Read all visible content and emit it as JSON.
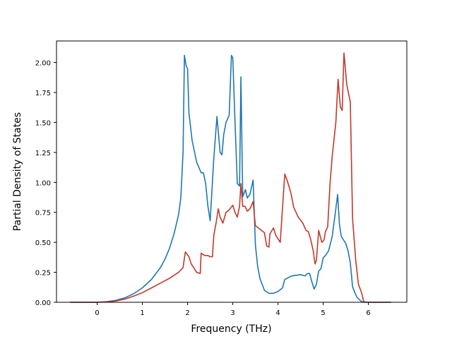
{
  "chart_data": {
    "type": "line",
    "title": "",
    "xlabel": "Frequency (THz)",
    "ylabel": "Partial Density of States",
    "xlim": [
      -0.9,
      6.85
    ],
    "ylim": [
      0,
      2.18
    ],
    "xticks": [
      0,
      1,
      2,
      3,
      4,
      5,
      6
    ],
    "xtick_labels": [
      "0",
      "1",
      "2",
      "3",
      "4",
      "5",
      "6"
    ],
    "yticks": [
      0,
      0.25,
      0.5,
      0.75,
      1.0,
      1.25,
      1.5,
      1.75,
      2.0
    ],
    "ytick_labels": [
      "0.00",
      "0.25",
      "0.50",
      "0.75",
      "1.00",
      "1.25",
      "1.50",
      "1.75",
      "2.00"
    ],
    "grid": false,
    "legend": "none",
    "series": [
      {
        "color": "#1f77b4",
        "points": [
          [
            -0.6,
            0.0
          ],
          [
            0.0,
            0.0
          ],
          [
            0.2,
            0.005
          ],
          [
            0.4,
            0.015
          ],
          [
            0.6,
            0.035
          ],
          [
            0.8,
            0.07
          ],
          [
            1.0,
            0.12
          ],
          [
            1.2,
            0.19
          ],
          [
            1.4,
            0.29
          ],
          [
            1.5,
            0.36
          ],
          [
            1.6,
            0.45
          ],
          [
            1.7,
            0.57
          ],
          [
            1.8,
            0.73
          ],
          [
            1.85,
            0.87
          ],
          [
            1.9,
            1.25
          ],
          [
            1.93,
            2.06
          ],
          [
            1.97,
            1.97
          ],
          [
            2.0,
            1.95
          ],
          [
            2.03,
            1.58
          ],
          [
            2.1,
            1.35
          ],
          [
            2.2,
            1.17
          ],
          [
            2.3,
            1.08
          ],
          [
            2.35,
            1.08
          ],
          [
            2.4,
            0.99
          ],
          [
            2.45,
            0.8
          ],
          [
            2.5,
            0.68
          ],
          [
            2.58,
            1.2
          ],
          [
            2.65,
            1.55
          ],
          [
            2.72,
            1.25
          ],
          [
            2.76,
            1.23
          ],
          [
            2.8,
            1.4
          ],
          [
            2.85,
            1.5
          ],
          [
            2.92,
            1.56
          ],
          [
            2.97,
            2.06
          ],
          [
            3.0,
            2.04
          ],
          [
            3.05,
            1.5
          ],
          [
            3.1,
            0.99
          ],
          [
            3.15,
            0.97
          ],
          [
            3.18,
            1.88
          ],
          [
            3.22,
            0.88
          ],
          [
            3.28,
            0.94
          ],
          [
            3.32,
            0.87
          ],
          [
            3.38,
            0.9
          ],
          [
            3.45,
            1.02
          ],
          [
            3.5,
            0.48
          ],
          [
            3.55,
            0.3
          ],
          [
            3.6,
            0.2
          ],
          [
            3.7,
            0.1
          ],
          [
            3.8,
            0.075
          ],
          [
            3.9,
            0.075
          ],
          [
            4.0,
            0.09
          ],
          [
            4.1,
            0.12
          ],
          [
            4.15,
            0.19
          ],
          [
            4.2,
            0.2
          ],
          [
            4.3,
            0.22
          ],
          [
            4.5,
            0.23
          ],
          [
            4.6,
            0.22
          ],
          [
            4.65,
            0.24
          ],
          [
            4.7,
            0.24
          ],
          [
            4.75,
            0.17
          ],
          [
            4.8,
            0.11
          ],
          [
            4.85,
            0.15
          ],
          [
            4.9,
            0.26
          ],
          [
            4.95,
            0.28
          ],
          [
            5.0,
            0.37
          ],
          [
            5.05,
            0.39
          ],
          [
            5.12,
            0.43
          ],
          [
            5.2,
            0.55
          ],
          [
            5.27,
            0.75
          ],
          [
            5.32,
            0.9
          ],
          [
            5.36,
            0.65
          ],
          [
            5.4,
            0.55
          ],
          [
            5.45,
            0.52
          ],
          [
            5.5,
            0.49
          ],
          [
            5.55,
            0.43
          ],
          [
            5.6,
            0.33
          ],
          [
            5.65,
            0.13
          ],
          [
            5.7,
            0.08
          ],
          [
            5.75,
            0.04
          ],
          [
            5.85,
            0.005
          ],
          [
            6.0,
            0.0
          ],
          [
            6.5,
            0.0
          ]
        ]
      },
      {
        "color": "#c0392b",
        "points": [
          [
            -0.6,
            0.0
          ],
          [
            0.0,
            0.0
          ],
          [
            0.2,
            0.003
          ],
          [
            0.4,
            0.01
          ],
          [
            0.6,
            0.025
          ],
          [
            0.8,
            0.05
          ],
          [
            1.0,
            0.08
          ],
          [
            1.2,
            0.12
          ],
          [
            1.4,
            0.16
          ],
          [
            1.6,
            0.2
          ],
          [
            1.8,
            0.25
          ],
          [
            1.9,
            0.29
          ],
          [
            1.95,
            0.42
          ],
          [
            2.03,
            0.38
          ],
          [
            2.08,
            0.32
          ],
          [
            2.15,
            0.28
          ],
          [
            2.2,
            0.25
          ],
          [
            2.28,
            0.24
          ],
          [
            2.3,
            0.41
          ],
          [
            2.38,
            0.39
          ],
          [
            2.45,
            0.39
          ],
          [
            2.5,
            0.38
          ],
          [
            2.55,
            0.38
          ],
          [
            2.58,
            0.56
          ],
          [
            2.63,
            0.66
          ],
          [
            2.68,
            0.78
          ],
          [
            2.72,
            0.71
          ],
          [
            2.78,
            0.66
          ],
          [
            2.85,
            0.75
          ],
          [
            2.92,
            0.77
          ],
          [
            3.0,
            0.81
          ],
          [
            3.05,
            0.75
          ],
          [
            3.1,
            0.71
          ],
          [
            3.15,
            0.8
          ],
          [
            3.18,
            0.99
          ],
          [
            3.22,
            0.8
          ],
          [
            3.27,
            0.8
          ],
          [
            3.32,
            0.76
          ],
          [
            3.38,
            0.78
          ],
          [
            3.45,
            0.84
          ],
          [
            3.5,
            0.64
          ],
          [
            3.6,
            0.61
          ],
          [
            3.7,
            0.58
          ],
          [
            3.75,
            0.47
          ],
          [
            3.8,
            0.46
          ],
          [
            3.82,
            0.57
          ],
          [
            3.9,
            0.62
          ],
          [
            3.95,
            0.56
          ],
          [
            4.05,
            0.5
          ],
          [
            4.12,
            0.9
          ],
          [
            4.15,
            1.07
          ],
          [
            4.2,
            1.02
          ],
          [
            4.28,
            0.92
          ],
          [
            4.35,
            0.79
          ],
          [
            4.45,
            0.71
          ],
          [
            4.55,
            0.66
          ],
          [
            4.62,
            0.6
          ],
          [
            4.67,
            0.59
          ],
          [
            4.72,
            0.53
          ],
          [
            4.78,
            0.43
          ],
          [
            4.82,
            0.32
          ],
          [
            4.85,
            0.35
          ],
          [
            4.9,
            0.6
          ],
          [
            4.97,
            0.5
          ],
          [
            5.02,
            0.52
          ],
          [
            5.05,
            0.59
          ],
          [
            5.1,
            0.63
          ],
          [
            5.15,
            0.98
          ],
          [
            5.2,
            1.22
          ],
          [
            5.28,
            1.5
          ],
          [
            5.33,
            1.86
          ],
          [
            5.38,
            1.63
          ],
          [
            5.42,
            1.6
          ],
          [
            5.46,
            2.08
          ],
          [
            5.52,
            1.82
          ],
          [
            5.6,
            1.67
          ],
          [
            5.65,
            0.7
          ],
          [
            5.72,
            0.35
          ],
          [
            5.78,
            0.15
          ],
          [
            5.85,
            0.08
          ],
          [
            5.9,
            0.0
          ],
          [
            6.5,
            0.0
          ]
        ]
      }
    ]
  }
}
